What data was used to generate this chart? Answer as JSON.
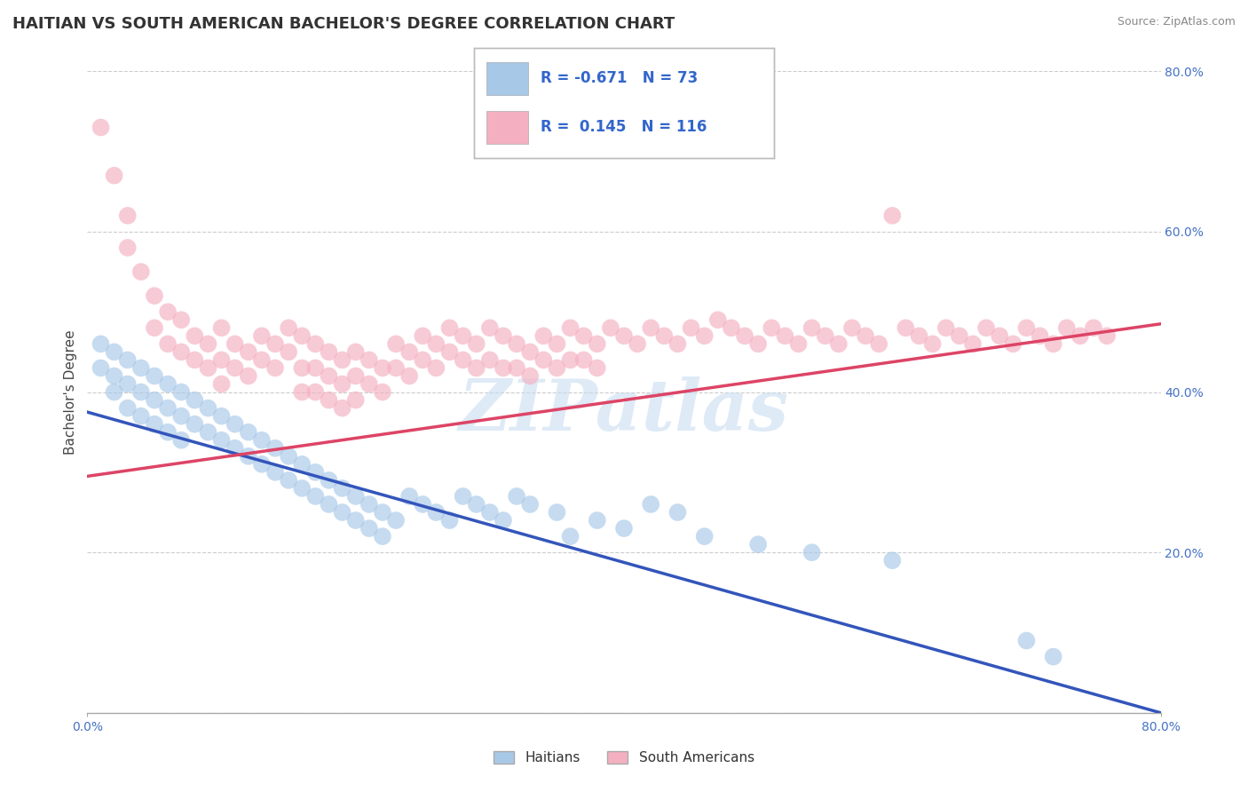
{
  "title": "HAITIAN VS SOUTH AMERICAN BACHELOR'S DEGREE CORRELATION CHART",
  "source": "Source: ZipAtlas.com",
  "ylabel_label": "Bachelor's Degree",
  "x_min": 0.0,
  "x_max": 0.8,
  "y_min": 0.0,
  "y_max": 0.8,
  "legend_r_blue": "-0.671",
  "legend_n_blue": "73",
  "legend_r_pink": "0.145",
  "legend_n_pink": "116",
  "legend_label_blue": "Haitians",
  "legend_label_pink": "South Americans",
  "blue_color": "#a8c8e8",
  "pink_color": "#f4b0c0",
  "blue_line_color": "#3355bb",
  "pink_line_color": "#dd4466",
  "watermark_text": "ZIPatlas",
  "title_fontsize": 13,
  "axis_label_fontsize": 11,
  "tick_fontsize": 10,
  "blue_trend_x0": 0.0,
  "blue_trend_y0": 0.375,
  "blue_trend_x1": 0.8,
  "blue_trend_y1": 0.0,
  "pink_trend_x0": 0.0,
  "pink_trend_y0": 0.295,
  "pink_trend_x1": 0.8,
  "pink_trend_y1": 0.485,
  "blue_scatter": [
    [
      0.01,
      0.43
    ],
    [
      0.01,
      0.46
    ],
    [
      0.02,
      0.45
    ],
    [
      0.02,
      0.42
    ],
    [
      0.02,
      0.4
    ],
    [
      0.03,
      0.44
    ],
    [
      0.03,
      0.41
    ],
    [
      0.03,
      0.38
    ],
    [
      0.04,
      0.43
    ],
    [
      0.04,
      0.4
    ],
    [
      0.04,
      0.37
    ],
    [
      0.05,
      0.42
    ],
    [
      0.05,
      0.39
    ],
    [
      0.05,
      0.36
    ],
    [
      0.06,
      0.41
    ],
    [
      0.06,
      0.38
    ],
    [
      0.06,
      0.35
    ],
    [
      0.07,
      0.4
    ],
    [
      0.07,
      0.37
    ],
    [
      0.07,
      0.34
    ],
    [
      0.08,
      0.39
    ],
    [
      0.08,
      0.36
    ],
    [
      0.09,
      0.38
    ],
    [
      0.09,
      0.35
    ],
    [
      0.1,
      0.37
    ],
    [
      0.1,
      0.34
    ],
    [
      0.11,
      0.36
    ],
    [
      0.11,
      0.33
    ],
    [
      0.12,
      0.35
    ],
    [
      0.12,
      0.32
    ],
    [
      0.13,
      0.34
    ],
    [
      0.13,
      0.31
    ],
    [
      0.14,
      0.33
    ],
    [
      0.14,
      0.3
    ],
    [
      0.15,
      0.32
    ],
    [
      0.15,
      0.29
    ],
    [
      0.16,
      0.31
    ],
    [
      0.16,
      0.28
    ],
    [
      0.17,
      0.3
    ],
    [
      0.17,
      0.27
    ],
    [
      0.18,
      0.29
    ],
    [
      0.18,
      0.26
    ],
    [
      0.19,
      0.28
    ],
    [
      0.19,
      0.25
    ],
    [
      0.2,
      0.27
    ],
    [
      0.2,
      0.24
    ],
    [
      0.21,
      0.26
    ],
    [
      0.21,
      0.23
    ],
    [
      0.22,
      0.25
    ],
    [
      0.22,
      0.22
    ],
    [
      0.23,
      0.24
    ],
    [
      0.24,
      0.27
    ],
    [
      0.25,
      0.26
    ],
    [
      0.26,
      0.25
    ],
    [
      0.27,
      0.24
    ],
    [
      0.28,
      0.27
    ],
    [
      0.29,
      0.26
    ],
    [
      0.3,
      0.25
    ],
    [
      0.31,
      0.24
    ],
    [
      0.32,
      0.27
    ],
    [
      0.33,
      0.26
    ],
    [
      0.35,
      0.25
    ],
    [
      0.36,
      0.22
    ],
    [
      0.38,
      0.24
    ],
    [
      0.4,
      0.23
    ],
    [
      0.42,
      0.26
    ],
    [
      0.44,
      0.25
    ],
    [
      0.46,
      0.22
    ],
    [
      0.5,
      0.21
    ],
    [
      0.54,
      0.2
    ],
    [
      0.6,
      0.19
    ],
    [
      0.7,
      0.09
    ],
    [
      0.72,
      0.07
    ]
  ],
  "pink_scatter": [
    [
      0.01,
      0.73
    ],
    [
      0.02,
      0.67
    ],
    [
      0.03,
      0.62
    ],
    [
      0.03,
      0.58
    ],
    [
      0.04,
      0.55
    ],
    [
      0.05,
      0.52
    ],
    [
      0.05,
      0.48
    ],
    [
      0.06,
      0.5
    ],
    [
      0.06,
      0.46
    ],
    [
      0.07,
      0.49
    ],
    [
      0.07,
      0.45
    ],
    [
      0.08,
      0.47
    ],
    [
      0.08,
      0.44
    ],
    [
      0.09,
      0.46
    ],
    [
      0.09,
      0.43
    ],
    [
      0.1,
      0.48
    ],
    [
      0.1,
      0.44
    ],
    [
      0.1,
      0.41
    ],
    [
      0.11,
      0.46
    ],
    [
      0.11,
      0.43
    ],
    [
      0.12,
      0.45
    ],
    [
      0.12,
      0.42
    ],
    [
      0.13,
      0.47
    ],
    [
      0.13,
      0.44
    ],
    [
      0.14,
      0.46
    ],
    [
      0.14,
      0.43
    ],
    [
      0.15,
      0.48
    ],
    [
      0.15,
      0.45
    ],
    [
      0.16,
      0.47
    ],
    [
      0.16,
      0.43
    ],
    [
      0.16,
      0.4
    ],
    [
      0.17,
      0.46
    ],
    [
      0.17,
      0.43
    ],
    [
      0.17,
      0.4
    ],
    [
      0.18,
      0.45
    ],
    [
      0.18,
      0.42
    ],
    [
      0.18,
      0.39
    ],
    [
      0.19,
      0.44
    ],
    [
      0.19,
      0.41
    ],
    [
      0.19,
      0.38
    ],
    [
      0.2,
      0.45
    ],
    [
      0.2,
      0.42
    ],
    [
      0.2,
      0.39
    ],
    [
      0.21,
      0.44
    ],
    [
      0.21,
      0.41
    ],
    [
      0.22,
      0.43
    ],
    [
      0.22,
      0.4
    ],
    [
      0.23,
      0.46
    ],
    [
      0.23,
      0.43
    ],
    [
      0.24,
      0.45
    ],
    [
      0.24,
      0.42
    ],
    [
      0.25,
      0.47
    ],
    [
      0.25,
      0.44
    ],
    [
      0.26,
      0.46
    ],
    [
      0.26,
      0.43
    ],
    [
      0.27,
      0.48
    ],
    [
      0.27,
      0.45
    ],
    [
      0.28,
      0.47
    ],
    [
      0.28,
      0.44
    ],
    [
      0.29,
      0.46
    ],
    [
      0.29,
      0.43
    ],
    [
      0.3,
      0.48
    ],
    [
      0.3,
      0.44
    ],
    [
      0.31,
      0.47
    ],
    [
      0.31,
      0.43
    ],
    [
      0.32,
      0.46
    ],
    [
      0.32,
      0.43
    ],
    [
      0.33,
      0.45
    ],
    [
      0.33,
      0.42
    ],
    [
      0.34,
      0.47
    ],
    [
      0.34,
      0.44
    ],
    [
      0.35,
      0.46
    ],
    [
      0.35,
      0.43
    ],
    [
      0.36,
      0.48
    ],
    [
      0.36,
      0.44
    ],
    [
      0.37,
      0.47
    ],
    [
      0.37,
      0.44
    ],
    [
      0.38,
      0.46
    ],
    [
      0.38,
      0.43
    ],
    [
      0.39,
      0.48
    ],
    [
      0.4,
      0.47
    ],
    [
      0.41,
      0.46
    ],
    [
      0.42,
      0.48
    ],
    [
      0.43,
      0.47
    ],
    [
      0.44,
      0.46
    ],
    [
      0.45,
      0.48
    ],
    [
      0.46,
      0.47
    ],
    [
      0.47,
      0.49
    ],
    [
      0.48,
      0.48
    ],
    [
      0.49,
      0.47
    ],
    [
      0.5,
      0.46
    ],
    [
      0.51,
      0.48
    ],
    [
      0.52,
      0.47
    ],
    [
      0.53,
      0.46
    ],
    [
      0.54,
      0.48
    ],
    [
      0.55,
      0.47
    ],
    [
      0.56,
      0.46
    ],
    [
      0.57,
      0.48
    ],
    [
      0.58,
      0.47
    ],
    [
      0.59,
      0.46
    ],
    [
      0.6,
      0.62
    ],
    [
      0.61,
      0.48
    ],
    [
      0.62,
      0.47
    ],
    [
      0.63,
      0.46
    ],
    [
      0.64,
      0.48
    ],
    [
      0.65,
      0.47
    ],
    [
      0.66,
      0.46
    ],
    [
      0.67,
      0.48
    ],
    [
      0.68,
      0.47
    ],
    [
      0.69,
      0.46
    ],
    [
      0.7,
      0.48
    ],
    [
      0.71,
      0.47
    ],
    [
      0.72,
      0.46
    ],
    [
      0.73,
      0.48
    ],
    [
      0.74,
      0.47
    ],
    [
      0.75,
      0.48
    ],
    [
      0.76,
      0.47
    ]
  ]
}
